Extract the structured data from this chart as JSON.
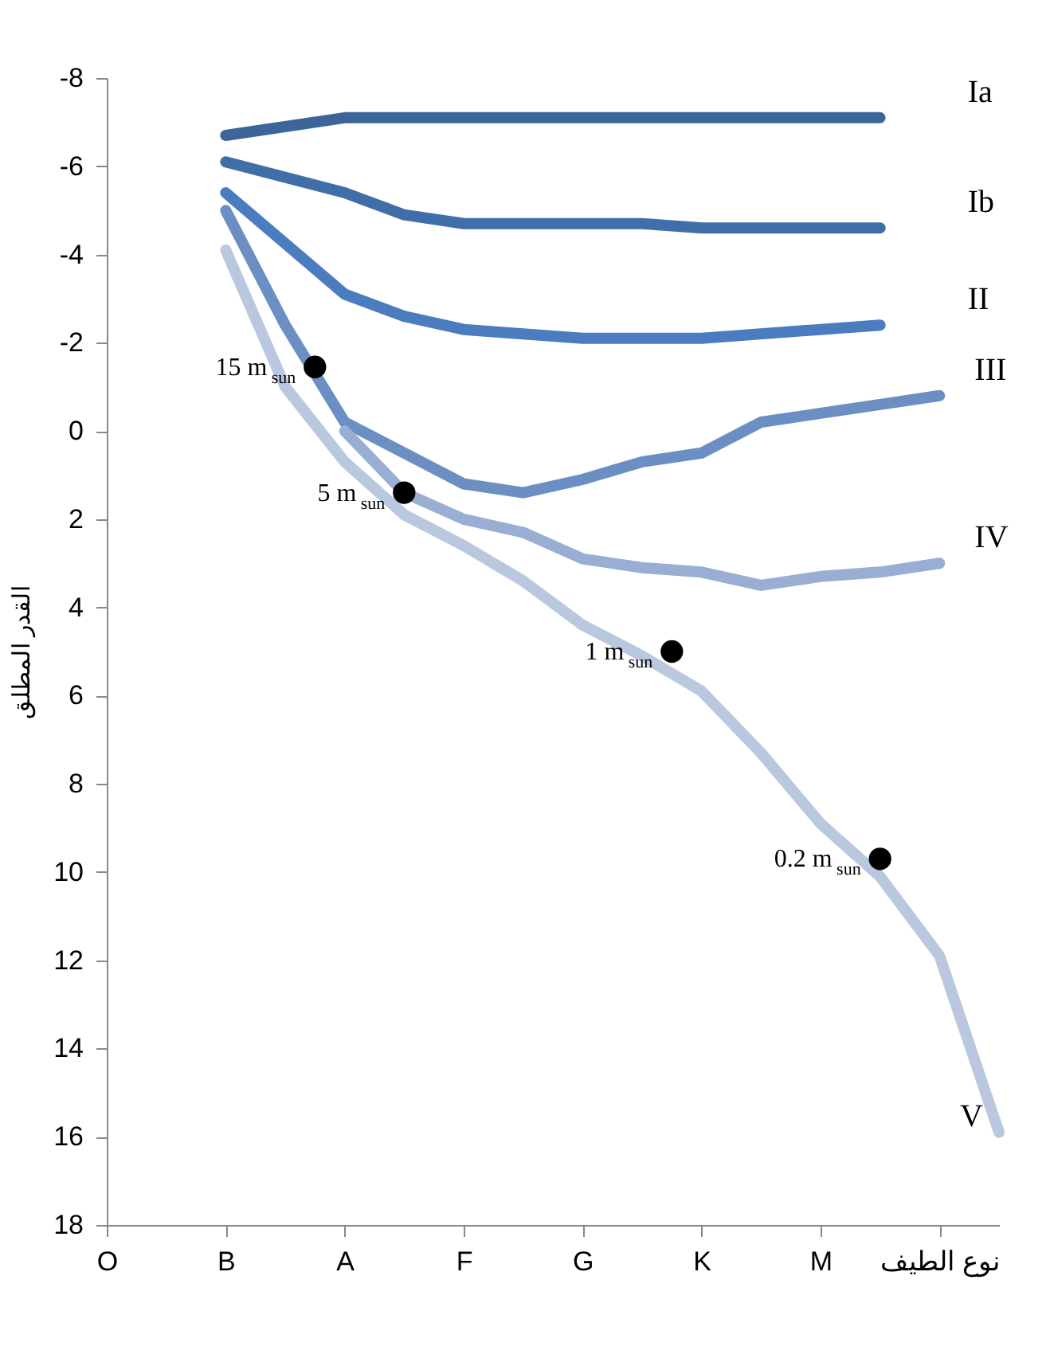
{
  "chart_data": {
    "type": "line",
    "ylabel": "القدر المطلق",
    "categories": [
      "O",
      null,
      null,
      null,
      "B",
      null,
      null,
      null,
      "A",
      null,
      null,
      null,
      "F",
      null,
      null,
      null,
      "G",
      null,
      null,
      null,
      "K",
      null,
      null,
      null,
      "M",
      null,
      null,
      null,
      "نوع الطيف",
      null,
      null
    ],
    "ylim": [
      18,
      -8
    ],
    "yticks": [
      -8,
      -6,
      -4,
      -2,
      0,
      2,
      4,
      6,
      8,
      10,
      12,
      14,
      16,
      18
    ],
    "line_style": "solid",
    "series": [
      {
        "name": "Ia",
        "color": "#3c6599",
        "values": [
          null,
          null,
          null,
          null,
          -6.7,
          null,
          null,
          null,
          -7.1,
          null,
          null,
          null,
          -7.1,
          null,
          null,
          null,
          -7.1,
          null,
          null,
          null,
          -7.1,
          null,
          null,
          null,
          -7.1,
          null,
          -7.1,
          null,
          null,
          null,
          null
        ]
      },
      {
        "name": "Ib",
        "color": "#3f6ea8",
        "values": [
          null,
          null,
          null,
          null,
          -6.1,
          null,
          null,
          null,
          -5.4,
          null,
          -4.9,
          null,
          -4.7,
          null,
          null,
          null,
          -4.7,
          null,
          -4.7,
          null,
          -4.6,
          null,
          null,
          null,
          null,
          null,
          -4.6,
          null,
          null,
          null,
          null
        ]
      },
      {
        "name": "II",
        "color": "#4a7cbf",
        "values": [
          null,
          null,
          null,
          null,
          -5.4,
          null,
          null,
          null,
          -3.1,
          null,
          -2.6,
          null,
          -2.3,
          null,
          null,
          null,
          -2.1,
          null,
          null,
          null,
          -2.1,
          null,
          null,
          null,
          null,
          null,
          -2.4,
          null,
          null,
          null,
          null
        ]
      },
      {
        "name": "III",
        "color": "#6b8fc2",
        "values": [
          null,
          null,
          null,
          null,
          -5.0,
          null,
          -2.4,
          null,
          -0.2,
          null,
          0.5,
          null,
          1.2,
          null,
          1.4,
          null,
          1.1,
          null,
          0.7,
          null,
          0.5,
          null,
          -0.2,
          null,
          -0.4,
          null,
          -0.6,
          null,
          -0.8,
          null,
          null
        ]
      },
      {
        "name": "IV",
        "color": "#98aed3",
        "values": [
          null,
          null,
          null,
          null,
          null,
          null,
          null,
          null,
          0,
          null,
          1.4,
          null,
          2.0,
          null,
          2.3,
          null,
          2.9,
          null,
          3.1,
          null,
          3.2,
          null,
          3.5,
          null,
          3.3,
          null,
          3.2,
          null,
          3.0,
          null,
          null
        ]
      },
      {
        "name": "V",
        "color": "#bac8df",
        "values": [
          null,
          null,
          null,
          null,
          -4.1,
          null,
          -1.0,
          null,
          0.7,
          null,
          1.9,
          null,
          2.6,
          null,
          3.4,
          null,
          4.4,
          null,
          5.1,
          null,
          5.9,
          null,
          7.3,
          null,
          8.9,
          null,
          10.1,
          null,
          11.9,
          null,
          15.9
        ]
      },
      {
        "type": "scatter",
        "marker": "circle",
        "color": "#000000",
        "values": [
          null,
          null,
          null,
          null,
          null,
          null,
          null,
          -1.45,
          null,
          null,
          1.4,
          null,
          null,
          null,
          null,
          null,
          null,
          null,
          null,
          5.0,
          null,
          null,
          null,
          null,
          null,
          null,
          9.7,
          null,
          null,
          null,
          null
        ]
      }
    ],
    "annotations": [
      "15 m$_{sun}$",
      "5 m$_{sun}$",
      "1 m$_{sun}$",
      "0.2 m$_{sun}$"
    ]
  }
}
